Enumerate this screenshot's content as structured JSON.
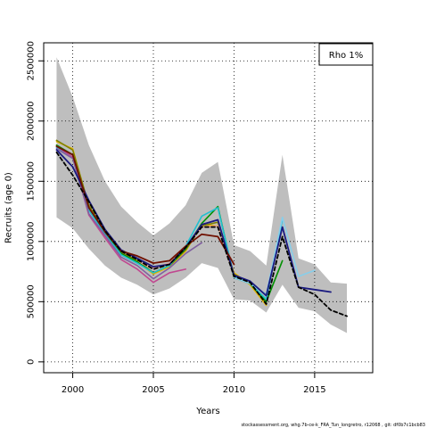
{
  "chart_data": {
    "type": "line",
    "xlabel": "Years",
    "ylabel": "Recruits (age 0)",
    "xlim": [
      1998.2,
      2018.6
    ],
    "ylim": [
      -90000,
      2650000
    ],
    "x_ticks": [
      2000,
      2005,
      2010,
      2015
    ],
    "y_ticks": [
      0,
      500000,
      1000000,
      1500000,
      2000000,
      2500000
    ],
    "y_tick_labels": [
      "0",
      "500000",
      "1000000",
      "1500000",
      "2000000",
      "2500000"
    ],
    "grid": "dotted",
    "legend": {
      "position": "top-right",
      "label": "Rho 1%"
    },
    "footer": "stockassessment.org, whg.7b-ce-k_FRA_Tun_longretro, r12068 , git: df0b7c1bcb83",
    "band": {
      "color": "#bebebe",
      "x": [
        1999,
        2000,
        2001,
        2002,
        2003,
        2004,
        2005,
        2006,
        2007,
        2008,
        2009,
        2010,
        2011,
        2012,
        2013,
        2014,
        2015,
        2016,
        2017
      ],
      "upper": [
        2530000,
        2200000,
        1800000,
        1500000,
        1290000,
        1160000,
        1050000,
        1150000,
        1300000,
        1570000,
        1660000,
        970000,
        920000,
        800000,
        1720000,
        860000,
        810000,
        660000,
        650000
      ],
      "lower": [
        1200000,
        1110000,
        940000,
        800000,
        700000,
        640000,
        560000,
        610000,
        700000,
        820000,
        780000,
        520000,
        510000,
        410000,
        640000,
        450000,
        420000,
        310000,
        240000
      ]
    },
    "series": [
      {
        "color": "#e6b800",
        "width": 1.6,
        "dash": false,
        "x": [
          1999,
          2000,
          2001,
          2002,
          2003,
          2004,
          2005,
          2006,
          2007,
          2008,
          2009,
          2010,
          2011,
          2012
        ],
        "values": [
          1830000,
          1770000,
          1290000,
          1080000,
          900000,
          830000,
          730000,
          790000,
          920000,
          1140000,
          1130000,
          740000,
          640000,
          470000
        ]
      },
      {
        "color": "#808000",
        "width": 1.6,
        "dash": false,
        "x": [
          1999,
          2000,
          2001,
          2002,
          2003,
          2004,
          2005,
          2006,
          2007,
          2008,
          2009,
          2010,
          2011,
          2012
        ],
        "values": [
          1840000,
          1760000,
          1300000,
          1080000,
          910000,
          840000,
          740000,
          800000,
          930000,
          1130000,
          1160000,
          730000,
          650000,
          490000
        ]
      },
      {
        "color": "#e8a090",
        "width": 1.6,
        "dash": false,
        "x": [
          1999,
          2000,
          2001,
          2002,
          2003,
          2004,
          2005,
          2006,
          2007,
          2008,
          2009,
          2010,
          2011,
          2012
        ],
        "values": [
          1800000,
          1720000,
          1270000,
          1060000,
          900000,
          830000,
          780000,
          820000,
          950000,
          1120000,
          1130000,
          720000,
          660000,
          500000
        ]
      },
      {
        "color": "#009000",
        "width": 1.6,
        "dash": false,
        "x": [
          1999,
          2000,
          2001,
          2002,
          2003,
          2004,
          2005,
          2006,
          2007,
          2008,
          2009,
          2010,
          2011,
          2012,
          2013
        ],
        "values": [
          1800000,
          1720000,
          1280000,
          1070000,
          900000,
          830000,
          740000,
          800000,
          940000,
          1150000,
          1290000,
          700000,
          650000,
          500000,
          840000
        ]
      },
      {
        "color": "#20c0d0",
        "width": 1.6,
        "dash": false,
        "x": [
          1999,
          2000,
          2001,
          2002,
          2003,
          2004,
          2005,
          2006,
          2007,
          2008,
          2009,
          2010,
          2011,
          2012,
          2013
        ],
        "values": [
          1780000,
          1700000,
          1260000,
          1060000,
          890000,
          820000,
          740000,
          800000,
          960000,
          1210000,
          1280000,
          710000,
          650000,
          520000,
          1180000
        ]
      },
      {
        "color": "#87ceeb",
        "width": 1.6,
        "dash": false,
        "x": [
          2010,
          2011,
          2012,
          2013,
          2014,
          2015
        ],
        "values": [
          700000,
          650000,
          560000,
          1200000,
          710000,
          760000
        ]
      },
      {
        "color": "#c04890",
        "width": 1.6,
        "dash": false,
        "x": [
          1999,
          2000,
          2001,
          2002,
          2003,
          2004,
          2005,
          2006,
          2007
        ],
        "values": [
          1790000,
          1700000,
          1220000,
          1030000,
          850000,
          770000,
          660000,
          740000,
          770000
        ]
      },
      {
        "color": "#8060a0",
        "width": 1.6,
        "dash": false,
        "x": [
          1999,
          2000,
          2001,
          2002,
          2003,
          2004,
          2005,
          2006,
          2007,
          2008
        ],
        "values": [
          1770000,
          1690000,
          1230000,
          1050000,
          870000,
          800000,
          690000,
          780000,
          900000,
          990000
        ]
      },
      {
        "color": "#1a1a80",
        "width": 1.8,
        "dash": false,
        "x": [
          1999,
          2000,
          2001,
          2002,
          2003,
          2004,
          2005,
          2006,
          2007,
          2008,
          2009,
          2010,
          2011,
          2012,
          2013,
          2014,
          2015,
          2016
        ],
        "values": [
          1760000,
          1620000,
          1340000,
          1100000,
          930000,
          860000,
          790000,
          810000,
          950000,
          1140000,
          1180000,
          720000,
          670000,
          550000,
          1120000,
          620000,
          600000,
          580000
        ]
      },
      {
        "color": "#701000",
        "width": 1.8,
        "dash": false,
        "x": [
          1999,
          2000,
          2001,
          2002,
          2003,
          2004,
          2005,
          2006,
          2007,
          2008,
          2009,
          2010
        ],
        "values": [
          1790000,
          1720000,
          1280000,
          1080000,
          920000,
          880000,
          820000,
          840000,
          960000,
          1060000,
          1040000,
          810000
        ]
      },
      {
        "color": "#000000",
        "width": 1.8,
        "dash": true,
        "x": [
          1999,
          2000,
          2001,
          2002,
          2003,
          2004,
          2005,
          2006,
          2007,
          2008,
          2009,
          2010,
          2011,
          2012,
          2013,
          2014,
          2015,
          2016,
          2017
        ],
        "values": [
          1740000,
          1550000,
          1330000,
          1090000,
          920000,
          850000,
          770000,
          810000,
          950000,
          1120000,
          1120000,
          710000,
          660000,
          480000,
          1040000,
          620000,
          560000,
          430000,
          380000
        ]
      }
    ]
  }
}
